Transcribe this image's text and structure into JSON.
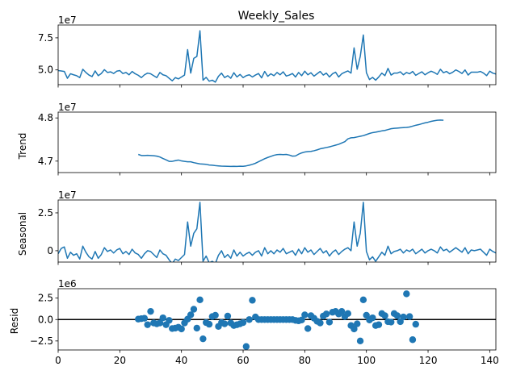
{
  "chart_data": [
    {
      "type": "line",
      "title": "Weekly_Sales",
      "ylabel": "",
      "offset_label": "1e7",
      "xlim": [
        0,
        142
      ],
      "ylim": [
        3.85,
        8.5
      ],
      "yticks": [
        5.0,
        7.5
      ],
      "ytick_labels": [
        "5.0",
        "7.5"
      ],
      "xticks": [
        0,
        20,
        40,
        60,
        80,
        100,
        120,
        140
      ],
      "show_xtick_labels": false,
      "line_color": "#1f77b4",
      "series": [
        {
          "start_x": 0,
          "values": [
            4.95,
            4.92,
            4.88,
            4.35,
            4.7,
            4.62,
            4.55,
            4.4,
            5.05,
            4.8,
            4.6,
            4.48,
            4.92,
            4.55,
            4.72,
            5.02,
            4.8,
            4.85,
            4.72,
            4.9,
            4.95,
            4.72,
            4.8,
            4.62,
            4.88,
            4.7,
            4.58,
            4.4,
            4.62,
            4.75,
            4.7,
            4.55,
            4.4,
            4.8,
            4.62,
            4.55,
            4.35,
            4.15,
            4.4,
            4.3,
            4.45,
            4.6,
            6.58,
            4.75,
            5.9,
            6.05,
            8.05,
            4.2,
            4.42,
            4.12,
            4.2,
            4.05,
            4.5,
            4.75,
            4.4,
            4.55,
            4.35,
            4.78,
            4.45,
            4.65,
            4.4,
            4.55,
            4.62,
            4.45,
            4.6,
            4.72,
            4.38,
            4.88,
            4.5,
            4.7,
            4.55,
            4.8,
            4.62,
            4.85,
            4.52,
            4.6,
            4.72,
            4.45,
            4.8,
            4.55,
            4.9,
            4.62,
            4.78,
            4.52,
            4.7,
            4.88,
            4.6,
            4.75,
            4.45,
            4.7,
            4.82,
            4.45,
            4.7,
            4.82,
            4.92,
            4.75,
            6.72,
            5.05,
            6.05,
            7.72,
            4.78,
            4.25,
            4.42,
            4.2,
            4.45,
            4.75,
            4.55,
            5.12,
            4.6,
            4.75,
            4.75,
            4.85,
            4.62,
            4.8,
            4.7,
            4.88,
            4.58,
            4.72,
            4.85,
            4.62,
            4.78,
            4.9,
            4.8,
            4.65,
            5.05,
            4.78,
            4.88,
            4.7,
            4.82,
            5.0,
            4.88,
            4.72,
            5.0,
            4.6,
            4.82,
            4.82,
            4.82,
            4.88,
            4.75,
            4.55,
            4.9,
            4.75,
            4.68
          ]
        }
      ]
    },
    {
      "type": "line",
      "title": "",
      "ylabel": "Trend",
      "offset_label": "1e7",
      "xlim": [
        0,
        142
      ],
      "ylim": [
        4.6735,
        4.8135
      ],
      "yticks": [
        4.7,
        4.8
      ],
      "ytick_labels": [
        "4.7",
        "4.8"
      ],
      "xticks": [
        0,
        20,
        40,
        60,
        80,
        100,
        120,
        140
      ],
      "show_xtick_labels": false,
      "line_color": "#1f77b4",
      "series": [
        {
          "start_x": 26,
          "values": [
            4.7155,
            4.713,
            4.713,
            4.7135,
            4.713,
            4.7125,
            4.7115,
            4.7095,
            4.706,
            4.703,
            4.6995,
            4.6995,
            4.701,
            4.7025,
            4.7005,
            4.6995,
            4.6985,
            4.6985,
            4.6965,
            4.695,
            4.6935,
            4.693,
            4.6925,
            4.691,
            4.6905,
            4.6895,
            4.689,
            4.6885,
            4.6882,
            4.688,
            4.6878,
            4.688,
            4.6878,
            4.6882,
            4.688,
            4.689,
            4.6905,
            4.6925,
            4.695,
            4.6985,
            4.702,
            4.7055,
            4.7085,
            4.711,
            4.7135,
            4.715,
            4.7155,
            4.715,
            4.7155,
            4.714,
            4.7115,
            4.712,
            4.716,
            4.719,
            4.721,
            4.722,
            4.7225,
            4.724,
            4.726,
            4.7285,
            4.73,
            4.7315,
            4.733,
            4.735,
            4.737,
            4.739,
            4.742,
            4.745,
            4.7515,
            4.754,
            4.7545,
            4.756,
            4.7575,
            4.759,
            4.7615,
            4.764,
            4.766,
            4.767,
            4.7685,
            4.77,
            4.771,
            4.773,
            4.775,
            4.776,
            4.7765,
            4.777,
            4.7775,
            4.778,
            4.779,
            4.781,
            4.783,
            4.7845,
            4.7865,
            4.7885,
            4.79,
            4.792,
            4.7935,
            4.7945,
            4.795,
            4.7945
          ]
        }
      ]
    },
    {
      "type": "line",
      "title": "",
      "ylabel": "Seasonal",
      "offset_label": "1e7",
      "xlim": [
        0,
        142
      ],
      "ylim": [
        -0.75,
        3.35
      ],
      "yticks": [
        0.0,
        2.5
      ],
      "ytick_labels": [
        "0",
        "2.5"
      ],
      "xticks": [
        0,
        20,
        40,
        60,
        80,
        100,
        120,
        140
      ],
      "show_xtick_labels": false,
      "line_color": "#1f77b4",
      "series": [
        {
          "start_x": 0,
          "values": [
            -0.2,
            0.15,
            0.25,
            -0.5,
            -0.1,
            -0.3,
            -0.2,
            -0.55,
            0.3,
            -0.1,
            -0.4,
            -0.55,
            -0.05,
            -0.5,
            -0.25,
            0.2,
            -0.05,
            0.05,
            -0.15,
            0.05,
            0.15,
            -0.2,
            -0.05,
            -0.25,
            0.1,
            -0.15,
            -0.25,
            -0.5,
            -0.2,
            0.0,
            -0.05,
            -0.25,
            -0.45,
            0.05,
            -0.2,
            -0.3,
            -0.6,
            -0.85,
            -0.55,
            -0.65,
            -0.45,
            -0.25,
            1.9,
            0.3,
            1.15,
            1.45,
            3.2,
            -0.7,
            -0.35,
            -0.8,
            -0.7,
            -0.85,
            -0.3,
            0.0,
            -0.45,
            -0.25,
            -0.5,
            0.05,
            -0.35,
            -0.1,
            -0.35,
            -0.2,
            -0.1,
            -0.3,
            -0.1,
            0.0,
            -0.35,
            0.2,
            -0.2,
            0.0,
            -0.2,
            0.05,
            -0.1,
            0.15,
            -0.2,
            -0.1,
            0.0,
            -0.3,
            0.1,
            -0.2,
            0.2,
            -0.1,
            0.05,
            -0.25,
            -0.05,
            0.15,
            -0.15,
            0.0,
            -0.35,
            -0.1,
            0.05,
            -0.25,
            -0.05,
            0.1,
            0.2,
            0.0,
            1.9,
            0.3,
            1.15,
            3.2,
            -0.05,
            -0.6,
            -0.4,
            -0.7,
            -0.4,
            -0.1,
            -0.3,
            0.3,
            -0.2,
            -0.05,
            0.0,
            0.1,
            -0.15,
            0.05,
            -0.05,
            0.1,
            -0.2,
            -0.05,
            0.1,
            -0.15,
            0.0,
            0.1,
            0.0,
            -0.15,
            0.25,
            0.0,
            0.1,
            -0.1,
            0.05,
            0.2,
            0.05,
            -0.1,
            0.2,
            -0.2,
            0.05,
            0.0,
            0.05,
            0.1,
            -0.1,
            -0.3,
            0.1,
            -0.05,
            -0.15
          ]
        }
      ]
    },
    {
      "type": "scatter",
      "title": "",
      "ylabel": "Resid",
      "offset_label": "1e6",
      "xlim": [
        0,
        142
      ],
      "ylim": [
        -3.55,
        3.6
      ],
      "yticks": [
        -2.5,
        0.0,
        2.5
      ],
      "ytick_labels": [
        "−2.5",
        "0.0",
        "2.5"
      ],
      "xticks": [
        0,
        20,
        40,
        60,
        80,
        100,
        120,
        140
      ],
      "xtick_labels": [
        "0",
        "20",
        "40",
        "60",
        "80",
        "100",
        "120",
        "140"
      ],
      "show_xtick_labels": true,
      "hline_y": 0,
      "marker_color": "#1f77b4",
      "points": [
        [
          26,
          0.05
        ],
        [
          27,
          0.1
        ],
        [
          28,
          0.15
        ],
        [
          29,
          -0.6
        ],
        [
          30,
          0.95
        ],
        [
          31,
          -0.4
        ],
        [
          32,
          -0.5
        ],
        [
          33,
          -0.4
        ],
        [
          34,
          0.2
        ],
        [
          35,
          -0.6
        ],
        [
          36,
          -0.1
        ],
        [
          37,
          -1.05
        ],
        [
          38,
          -1.0
        ],
        [
          39,
          -0.9
        ],
        [
          40,
          -1.1
        ],
        [
          41,
          -0.4
        ],
        [
          42,
          0.05
        ],
        [
          43,
          0.55
        ],
        [
          44,
          1.2
        ],
        [
          45,
          -1.0
        ],
        [
          46,
          2.3
        ],
        [
          47,
          -2.25
        ],
        [
          48,
          -0.35
        ],
        [
          49,
          -0.55
        ],
        [
          50,
          0.35
        ],
        [
          51,
          0.5
        ],
        [
          52,
          -0.8
        ],
        [
          53,
          -0.35
        ],
        [
          54,
          -0.5
        ],
        [
          55,
          0.4
        ],
        [
          56,
          -0.4
        ],
        [
          57,
          -0.7
        ],
        [
          58,
          -0.6
        ],
        [
          59,
          -0.5
        ],
        [
          60,
          -0.35
        ],
        [
          61,
          -3.15
        ],
        [
          62,
          0.0
        ],
        [
          63,
          2.25
        ],
        [
          64,
          0.3
        ],
        [
          65,
          0.0
        ],
        [
          66,
          0.0
        ],
        [
          67,
          0.0
        ],
        [
          68,
          0.0
        ],
        [
          69,
          0.0
        ],
        [
          70,
          0.0
        ],
        [
          71,
          0.0
        ],
        [
          72,
          0.0
        ],
        [
          73,
          0.0
        ],
        [
          74,
          0.0
        ],
        [
          75,
          0.0
        ],
        [
          76,
          0.0
        ],
        [
          77,
          -0.1
        ],
        [
          78,
          -0.15
        ],
        [
          79,
          -0.05
        ],
        [
          80,
          0.55
        ],
        [
          81,
          -1.05
        ],
        [
          82,
          0.45
        ],
        [
          83,
          0.15
        ],
        [
          84,
          -0.2
        ],
        [
          85,
          -0.4
        ],
        [
          86,
          0.4
        ],
        [
          87,
          0.65
        ],
        [
          88,
          -0.3
        ],
        [
          89,
          0.85
        ],
        [
          90,
          0.95
        ],
        [
          91,
          0.65
        ],
        [
          92,
          0.95
        ],
        [
          93,
          0.35
        ],
        [
          94,
          0.7
        ],
        [
          95,
          -0.7
        ],
        [
          96,
          -1.1
        ],
        [
          97,
          -0.5
        ],
        [
          98,
          -2.5
        ],
        [
          99,
          2.3
        ],
        [
          100,
          0.5
        ],
        [
          101,
          -0.05
        ],
        [
          102,
          0.2
        ],
        [
          103,
          -0.7
        ],
        [
          104,
          -0.6
        ],
        [
          105,
          0.7
        ],
        [
          106,
          0.45
        ],
        [
          107,
          -0.25
        ],
        [
          108,
          -0.3
        ],
        [
          109,
          0.7
        ],
        [
          110,
          0.45
        ],
        [
          111,
          -0.25
        ],
        [
          112,
          0.3
        ],
        [
          113,
          3.0
        ],
        [
          114,
          0.35
        ],
        [
          115,
          -2.35
        ],
        [
          116,
          -0.55
        ]
      ]
    }
  ]
}
